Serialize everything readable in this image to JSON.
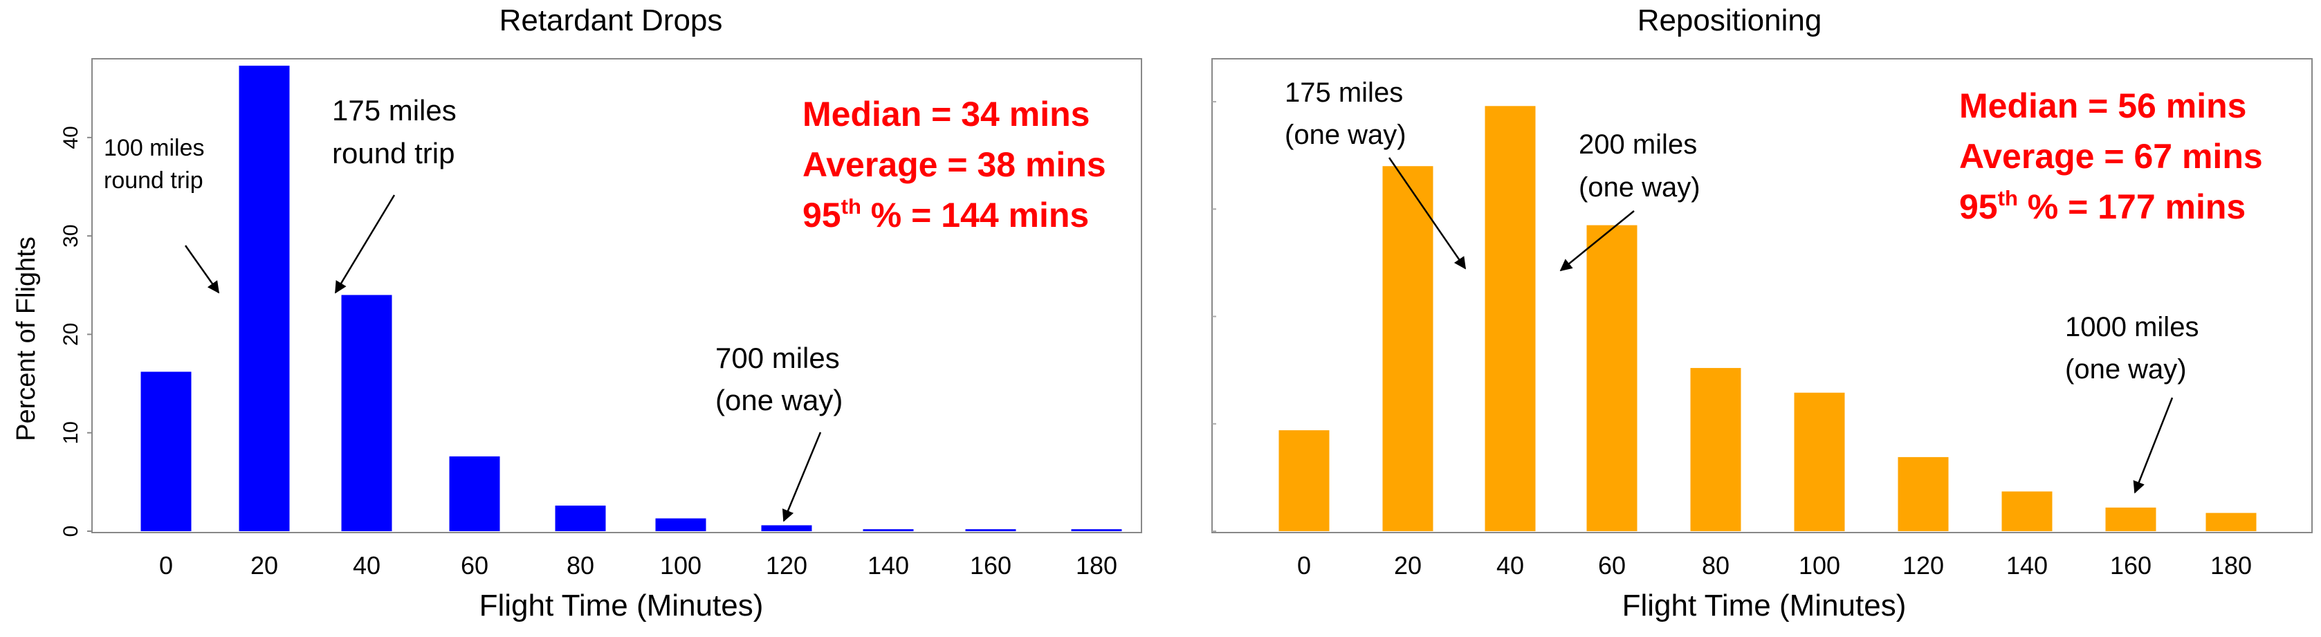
{
  "chart_data": [
    {
      "type": "bar",
      "title": "Retardant Drops",
      "xlabel": "Flight Time (Minutes)",
      "ylabel": "Percent of Flights",
      "categories": [
        "0",
        "20",
        "40",
        "60",
        "80",
        "100",
        "120",
        "140",
        "160",
        "180"
      ],
      "series": [
        {
          "values": [
            16.2,
            47.3,
            24.0,
            7.6,
            2.6,
            1.3,
            0.6,
            0.2,
            0.2,
            0.2
          ]
        }
      ],
      "ylim": [
        0,
        48
      ],
      "yticks": [
        0,
        10,
        20,
        30,
        40
      ],
      "bar_color": "#0000ff",
      "stats": [
        "Median = 34 mins",
        "Average = 38 mins"
      ],
      "stat95": {
        "prefix": "95",
        "sup": "th",
        "suffix": " % = 144 mins"
      },
      "stats_color": "#ff0000",
      "annotations": [
        {
          "lines": [
            "100 miles",
            "round trip"
          ],
          "category_index": 1
        },
        {
          "lines": [
            "175 miles",
            "round trip"
          ],
          "category_index": 2
        },
        {
          "lines": [
            "700 miles",
            "(one way)"
          ],
          "category_index": 6
        }
      ],
      "grid": false
    },
    {
      "type": "bar",
      "title": "Repositioning",
      "xlabel": "Flight Time (Minutes)",
      "ylabel": "",
      "categories": [
        "0",
        "20",
        "40",
        "60",
        "80",
        "100",
        "120",
        "140",
        "160",
        "180"
      ],
      "series": [
        {
          "values": [
            9.4,
            34.0,
            39.6,
            28.5,
            15.2,
            12.9,
            6.9,
            3.7,
            2.2,
            1.7
          ]
        }
      ],
      "ylim": [
        0,
        44
      ],
      "bar_color": "#ffa500",
      "stats": [
        "Median = 56 mins",
        "Average = 67 mins"
      ],
      "stat95": {
        "prefix": "95",
        "sup": "th",
        "suffix": " % = 177 mins"
      },
      "stats_color": "#ff0000",
      "annotations": [
        {
          "lines": [
            "175 miles",
            "(one way)"
          ],
          "category_index": 1
        },
        {
          "lines": [
            "200 miles",
            "(one way)"
          ],
          "category_index": 2
        },
        {
          "lines": [
            "1000 miles",
            "(one way)"
          ],
          "category_index": 8
        }
      ],
      "grid": false
    }
  ]
}
